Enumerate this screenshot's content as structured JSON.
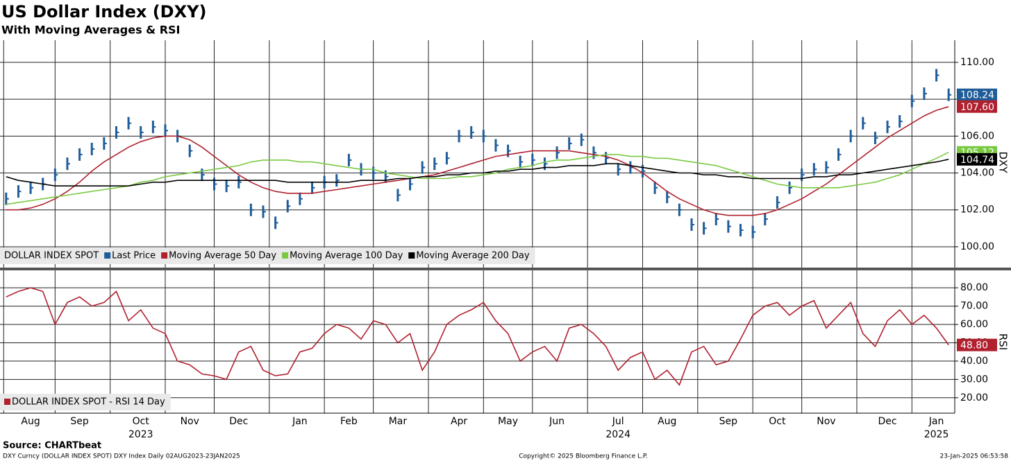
{
  "chart_data": [
    {
      "type": "line",
      "title": "US Dollar Index (DXY)",
      "subtitle": "With Moving Averages & RSI",
      "axis_title": "DXY",
      "legend_prefix": "DOLLAR INDEX SPOT",
      "grid": true,
      "ylim": [
        98.87,
        111.2
      ],
      "yticks": [
        {
          "value": 100,
          "label": "100.00"
        },
        {
          "value": 102,
          "label": "102.00"
        },
        {
          "value": 104,
          "label": "104.00"
        },
        {
          "value": 106,
          "label": "106.00"
        },
        {
          "value": 108,
          "label": "108.00"
        },
        {
          "value": 110,
          "label": "110.00"
        }
      ],
      "series": [
        {
          "name": "Last Price",
          "color": "#1f5c99",
          "style": "bars",
          "last_value_label": "108.24",
          "values": [
            102.6,
            103.0,
            103.2,
            103.4,
            103.9,
            104.5,
            105.0,
            105.3,
            105.6,
            106.2,
            106.7,
            106.2,
            106.5,
            106.3,
            106.0,
            105.2,
            103.9,
            103.4,
            103.3,
            103.5,
            102.0,
            101.9,
            101.3,
            102.2,
            102.6,
            103.2,
            103.5,
            103.6,
            104.7,
            104.2,
            104.0,
            103.8,
            102.8,
            103.4,
            104.3,
            104.5,
            104.8,
            106.0,
            106.2,
            106.0,
            105.5,
            105.2,
            104.6,
            104.7,
            104.5,
            105.1,
            105.6,
            105.8,
            105.1,
            104.8,
            104.2,
            104.3,
            104.1,
            103.2,
            102.7,
            102.0,
            101.2,
            101.0,
            101.5,
            101.1,
            100.9,
            100.8,
            101.5,
            102.4,
            103.2,
            103.9,
            104.2,
            104.3,
            105.0,
            106.0,
            106.7,
            105.9,
            106.5,
            106.8,
            107.9,
            108.3,
            109.3,
            108.24
          ]
        },
        {
          "name": "Moving Average 50 Day",
          "color": "#b0202e",
          "style": "line",
          "last_value_label": "107.60",
          "values": [
            102.0,
            102.0,
            102.1,
            102.3,
            102.6,
            103.0,
            103.5,
            104.1,
            104.6,
            105.0,
            105.4,
            105.7,
            105.9,
            106.0,
            106.0,
            105.8,
            105.4,
            104.9,
            104.4,
            103.9,
            103.5,
            103.2,
            103.0,
            102.9,
            102.9,
            102.9,
            103.0,
            103.1,
            103.2,
            103.3,
            103.4,
            103.5,
            103.6,
            103.7,
            103.8,
            103.9,
            104.1,
            104.3,
            104.5,
            104.7,
            104.9,
            105.0,
            105.1,
            105.2,
            105.2,
            105.2,
            105.2,
            105.1,
            105.0,
            104.9,
            104.7,
            104.4,
            104.0,
            103.5,
            103.0,
            102.6,
            102.3,
            102.0,
            101.8,
            101.7,
            101.7,
            101.7,
            101.8,
            102.0,
            102.3,
            102.6,
            103.0,
            103.4,
            103.9,
            104.4,
            104.9,
            105.4,
            105.9,
            106.3,
            106.7,
            107.1,
            107.4,
            107.6
          ]
        },
        {
          "name": "Moving Average 100 Day",
          "color": "#7ac943",
          "style": "line",
          "last_value_label": "105.12",
          "values": [
            102.3,
            102.4,
            102.5,
            102.6,
            102.7,
            102.8,
            102.9,
            103.0,
            103.1,
            103.2,
            103.3,
            103.5,
            103.6,
            103.8,
            103.9,
            104.0,
            104.1,
            104.2,
            104.3,
            104.4,
            104.6,
            104.7,
            104.7,
            104.7,
            104.6,
            104.6,
            104.5,
            104.4,
            104.3,
            104.2,
            104.2,
            104.0,
            103.9,
            103.8,
            103.7,
            103.7,
            103.7,
            103.8,
            103.8,
            103.9,
            104.0,
            104.2,
            104.3,
            104.4,
            104.6,
            104.7,
            104.7,
            104.8,
            104.9,
            105.0,
            105.0,
            104.9,
            104.9,
            104.8,
            104.8,
            104.7,
            104.6,
            104.5,
            104.4,
            104.2,
            104.0,
            103.8,
            103.6,
            103.4,
            103.3,
            103.2,
            103.2,
            103.2,
            103.2,
            103.3,
            103.4,
            103.5,
            103.7,
            103.9,
            104.2,
            104.5,
            104.8,
            105.12
          ]
        },
        {
          "name": "Moving Average 200 Day",
          "color": "#000000",
          "style": "line",
          "last_value_label": "104.74",
          "values": [
            103.8,
            103.6,
            103.5,
            103.4,
            103.3,
            103.3,
            103.3,
            103.3,
            103.3,
            103.3,
            103.3,
            103.4,
            103.5,
            103.5,
            103.6,
            103.6,
            103.6,
            103.6,
            103.6,
            103.6,
            103.6,
            103.6,
            103.6,
            103.5,
            103.5,
            103.5,
            103.5,
            103.5,
            103.5,
            103.6,
            103.6,
            103.6,
            103.7,
            103.7,
            103.8,
            103.8,
            103.9,
            103.9,
            104.0,
            104.0,
            104.1,
            104.1,
            104.2,
            104.2,
            104.3,
            104.3,
            104.4,
            104.4,
            104.4,
            104.5,
            104.5,
            104.4,
            104.3,
            104.2,
            104.1,
            104.0,
            104.0,
            103.9,
            103.9,
            103.8,
            103.8,
            103.7,
            103.7,
            103.7,
            103.7,
            103.7,
            103.8,
            103.8,
            103.9,
            103.9,
            104.0,
            104.1,
            104.2,
            104.3,
            104.4,
            104.5,
            104.6,
            104.74
          ]
        }
      ]
    },
    {
      "type": "line",
      "axis_title": "RSI",
      "grid": true,
      "ylim": [
        11.6,
        89.5
      ],
      "yticks": [
        {
          "value": 20,
          "label": "20.00"
        },
        {
          "value": 30,
          "label": "30.00"
        },
        {
          "value": 40,
          "label": "40.00"
        },
        {
          "value": 50,
          "label": "50.00"
        },
        {
          "value": 60,
          "label": "60.00"
        },
        {
          "value": 70,
          "label": "70.00"
        },
        {
          "value": 80,
          "label": "80.00"
        }
      ],
      "categories": [
        null,
        null,
        "Aug",
        null,
        null,
        null,
        "Sep",
        null,
        null,
        null,
        null,
        "Oct",
        null,
        null,
        null,
        "Nov",
        null,
        null,
        null,
        "Dec",
        null,
        null,
        null,
        null,
        "Jan",
        null,
        null,
        null,
        "Feb",
        null,
        null,
        null,
        "Mar",
        null,
        null,
        null,
        null,
        "Apr",
        null,
        null,
        null,
        "May",
        null,
        null,
        null,
        "Jun",
        null,
        null,
        null,
        null,
        "Jul",
        null,
        null,
        null,
        "Aug",
        null,
        null,
        null,
        null,
        "Sep",
        null,
        null,
        null,
        "Oct",
        null,
        null,
        null,
        "Nov",
        null,
        null,
        null,
        null,
        "Dec",
        null,
        null,
        null,
        "Jan",
        null
      ],
      "year_categories": [
        null,
        null,
        null,
        null,
        null,
        null,
        null,
        null,
        null,
        null,
        null,
        "2023",
        null,
        null,
        null,
        null,
        null,
        null,
        null,
        null,
        null,
        null,
        null,
        null,
        null,
        null,
        null,
        null,
        null,
        null,
        null,
        null,
        null,
        null,
        null,
        null,
        null,
        null,
        null,
        null,
        null,
        null,
        null,
        null,
        null,
        null,
        null,
        null,
        null,
        null,
        "2024",
        null,
        null,
        null,
        null,
        null,
        null,
        null,
        null,
        null,
        null,
        null,
        null,
        null,
        null,
        null,
        null,
        null,
        null,
        null,
        null,
        null,
        null,
        null,
        null,
        null,
        "2025",
        null
      ],
      "series": [
        {
          "name": "DOLLAR INDEX SPOT - RSI 14 Day",
          "color": "#b0202e",
          "style": "line",
          "last_value_label": "48.80",
          "values": [
            75,
            78,
            80,
            78,
            60,
            72,
            75,
            70,
            72,
            78,
            62,
            68,
            58,
            55,
            40,
            38,
            33,
            32,
            30,
            45,
            48,
            35,
            32,
            33,
            45,
            47,
            55,
            60,
            58,
            52,
            62,
            60,
            50,
            55,
            35,
            45,
            60,
            65,
            68,
            72,
            62,
            55,
            40,
            45,
            48,
            40,
            58,
            60,
            55,
            48,
            35,
            42,
            45,
            30,
            35,
            27,
            45,
            48,
            38,
            40,
            52,
            65,
            70,
            72,
            65,
            70,
            73,
            58,
            65,
            72,
            55,
            48,
            62,
            68,
            60,
            65,
            58,
            48.8
          ]
        }
      ]
    }
  ],
  "footer": {
    "source": "Source: CHARTbeat",
    "left": "DXY Curncy (DOLLAR INDEX SPOT) DXY Index  Daily 02AUG2023-23JAN2025",
    "center": "Copyright© 2025 Bloomberg Finance L.P.",
    "right": "23-Jan-2025 06:53:58"
  }
}
